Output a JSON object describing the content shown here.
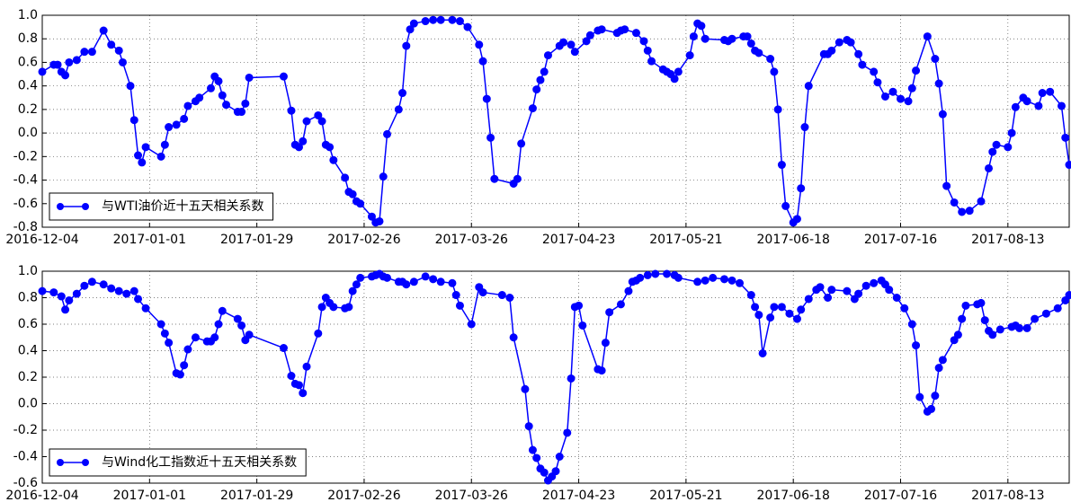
{
  "chart_data": [
    {
      "type": "line",
      "legend": "lower left",
      "grid": true,
      "xlim": [
        "2016-12-04",
        "2017-08-29"
      ],
      "xticks": [
        "2016-12-04",
        "2017-01-01",
        "2017-01-29",
        "2017-02-26",
        "2017-03-26",
        "2017-04-23",
        "2017-05-21",
        "2017-06-18",
        "2017-07-16",
        "2017-08-13"
      ],
      "ylim": [
        -0.8,
        1.0
      ],
      "yticks": [
        -0.8,
        -0.6,
        -0.4,
        -0.2,
        {
          "value": 0.0,
          "label": "0.0"
        },
        0.2,
        0.4,
        0.6,
        0.8,
        {
          "value": 1.0,
          "label": "1.0"
        }
      ],
      "x": [
        "2016-12-04",
        "2016-12-07",
        "2016-12-08",
        "2016-12-09",
        "2016-12-10",
        "2016-12-11",
        "2016-12-13",
        "2016-12-15",
        "2016-12-17",
        "2016-12-20",
        "2016-12-22",
        "2016-12-24",
        "2016-12-25",
        "2016-12-27",
        "2016-12-28",
        "2016-12-29",
        "2016-12-30",
        "2016-12-31",
        "2017-01-04",
        "2017-01-05",
        "2017-01-06",
        "2017-01-08",
        "2017-01-10",
        "2017-01-11",
        "2017-01-13",
        "2017-01-14",
        "2017-01-17",
        "2017-01-18",
        "2017-01-19",
        "2017-01-20",
        "2017-01-21",
        "2017-01-24",
        "2017-01-25",
        "2017-01-26",
        "2017-01-27",
        "2017-02-05",
        "2017-02-07",
        "2017-02-08",
        "2017-02-09",
        "2017-02-10",
        "2017-02-11",
        "2017-02-14",
        "2017-02-15",
        "2017-02-16",
        "2017-02-17",
        "2017-02-18",
        "2017-02-21",
        "2017-02-22",
        "2017-02-23",
        "2017-02-24",
        "2017-02-25",
        "2017-02-28",
        "2017-03-01",
        "2017-03-02",
        "2017-03-03",
        "2017-03-04",
        "2017-03-07",
        "2017-03-08",
        "2017-03-09",
        "2017-03-10",
        "2017-03-11",
        "2017-03-14",
        "2017-03-16",
        "2017-03-18",
        "2017-03-21",
        "2017-03-23",
        "2017-03-25",
        "2017-03-28",
        "2017-03-29",
        "2017-03-30",
        "2017-03-31",
        "2017-04-01",
        "2017-04-06",
        "2017-04-07",
        "2017-04-08",
        "2017-04-11",
        "2017-04-12",
        "2017-04-13",
        "2017-04-14",
        "2017-04-15",
        "2017-04-18",
        "2017-04-19",
        "2017-04-21",
        "2017-04-22",
        "2017-04-25",
        "2017-04-26",
        "2017-04-28",
        "2017-04-29",
        "2017-05-03",
        "2017-05-04",
        "2017-05-05",
        "2017-05-08",
        "2017-05-10",
        "2017-05-11",
        "2017-05-12",
        "2017-05-15",
        "2017-05-16",
        "2017-05-17",
        "2017-05-18",
        "2017-05-19",
        "2017-05-22",
        "2017-05-23",
        "2017-05-24",
        "2017-05-25",
        "2017-05-26",
        "2017-05-31",
        "2017-06-01",
        "2017-06-02",
        "2017-06-05",
        "2017-06-06",
        "2017-06-07",
        "2017-06-08",
        "2017-06-09",
        "2017-06-12",
        "2017-06-13",
        "2017-06-14",
        "2017-06-15",
        "2017-06-16",
        "2017-06-18",
        "2017-06-19",
        "2017-06-20",
        "2017-06-21",
        "2017-06-22",
        "2017-06-26",
        "2017-06-27",
        "2017-06-28",
        "2017-06-30",
        "2017-07-02",
        "2017-07-03",
        "2017-07-05",
        "2017-07-06",
        "2017-07-09",
        "2017-07-10",
        "2017-07-12",
        "2017-07-14",
        "2017-07-16",
        "2017-07-18",
        "2017-07-19",
        "2017-07-20",
        "2017-07-23",
        "2017-07-25",
        "2017-07-26",
        "2017-07-27",
        "2017-07-28",
        "2017-07-30",
        "2017-08-01",
        "2017-08-03",
        "2017-08-06",
        "2017-08-08",
        "2017-08-09",
        "2017-08-10",
        "2017-08-13",
        "2017-08-14",
        "2017-08-15",
        "2017-08-17",
        "2017-08-18",
        "2017-08-21",
        "2017-08-22",
        "2017-08-24",
        "2017-08-27",
        "2017-08-28",
        "2017-08-29"
      ],
      "series": [
        {
          "name": "与WTI油价近十五天相关系数",
          "color": "#0000ff",
          "values": [
            0.52,
            0.58,
            0.58,
            0.52,
            0.49,
            0.6,
            0.62,
            0.69,
            0.69,
            0.87,
            0.75,
            0.7,
            0.6,
            0.4,
            0.11,
            -0.19,
            -0.25,
            -0.12,
            -0.2,
            -0.1,
            0.05,
            0.07,
            0.12,
            0.23,
            0.27,
            0.3,
            0.38,
            0.48,
            0.44,
            0.32,
            0.24,
            0.18,
            0.18,
            0.25,
            0.47,
            0.48,
            0.19,
            -0.1,
            -0.12,
            -0.07,
            0.1,
            0.15,
            0.1,
            -0.1,
            -0.12,
            -0.23,
            -0.38,
            -0.5,
            -0.52,
            -0.58,
            -0.6,
            -0.71,
            -0.76,
            -0.75,
            -0.37,
            -0.01,
            0.2,
            0.34,
            0.74,
            0.88,
            0.93,
            0.95,
            0.96,
            0.96,
            0.96,
            0.95,
            0.9,
            0.75,
            0.61,
            0.29,
            -0.04,
            -0.39,
            -0.43,
            -0.39,
            -0.09,
            0.21,
            0.37,
            0.45,
            0.52,
            0.66,
            0.74,
            0.77,
            0.75,
            0.69,
            0.78,
            0.83,
            0.87,
            0.88,
            0.85,
            0.87,
            0.88,
            0.85,
            0.78,
            0.7,
            0.61,
            0.54,
            0.52,
            0.5,
            0.46,
            0.52,
            0.66,
            0.82,
            0.93,
            0.91,
            0.8,
            0.79,
            0.78,
            0.8,
            0.82,
            0.82,
            0.76,
            0.7,
            0.68,
            0.63,
            0.52,
            0.2,
            -0.27,
            -0.62,
            -0.76,
            -0.73,
            -0.47,
            0.05,
            0.4,
            0.67,
            0.67,
            0.7,
            0.77,
            0.79,
            0.77,
            0.67,
            0.58,
            0.52,
            0.43,
            0.31,
            0.35,
            0.29,
            0.27,
            0.38,
            0.53,
            0.82,
            0.63,
            0.42,
            0.16,
            -0.45,
            -0.59,
            -0.67,
            -0.66,
            -0.58,
            -0.3,
            -0.16,
            -0.1,
            -0.12,
            0.0,
            0.22,
            0.3,
            0.27,
            0.23,
            0.34,
            0.35,
            0.23,
            -0.04,
            -0.27
          ]
        }
      ]
    },
    {
      "type": "line",
      "legend": "lower left",
      "grid": true,
      "xlim": [
        "2016-12-04",
        "2017-08-29"
      ],
      "xticks": [
        "2016-12-04",
        "2017-01-01",
        "2017-01-29",
        "2017-02-26",
        "2017-03-26",
        "2017-04-23",
        "2017-05-21",
        "2017-06-18",
        "2017-07-16",
        "2017-08-13"
      ],
      "ylim": [
        -0.6,
        1.0
      ],
      "yticks": [
        -0.6,
        -0.4,
        -0.2,
        {
          "value": 0.0,
          "label": "0.0"
        },
        0.2,
        0.4,
        0.6,
        0.8,
        {
          "value": 1.0,
          "label": "1.0"
        }
      ],
      "x": [
        "2016-12-04",
        "2016-12-07",
        "2016-12-09",
        "2016-12-10",
        "2016-12-11",
        "2016-12-13",
        "2016-12-15",
        "2016-12-17",
        "2016-12-20",
        "2016-12-22",
        "2016-12-24",
        "2016-12-26",
        "2016-12-28",
        "2016-12-29",
        "2016-12-31",
        "2017-01-04",
        "2017-01-05",
        "2017-01-06",
        "2017-01-08",
        "2017-01-09",
        "2017-01-10",
        "2017-01-11",
        "2017-01-13",
        "2017-01-16",
        "2017-01-17",
        "2017-01-18",
        "2017-01-19",
        "2017-01-20",
        "2017-01-24",
        "2017-01-25",
        "2017-01-26",
        "2017-01-27",
        "2017-02-05",
        "2017-02-07",
        "2017-02-08",
        "2017-02-09",
        "2017-02-10",
        "2017-02-11",
        "2017-02-14",
        "2017-02-15",
        "2017-02-16",
        "2017-02-17",
        "2017-02-18",
        "2017-02-21",
        "2017-02-22",
        "2017-02-23",
        "2017-02-24",
        "2017-02-25",
        "2017-02-28",
        "2017-03-01",
        "2017-03-02",
        "2017-03-03",
        "2017-03-04",
        "2017-03-07",
        "2017-03-08",
        "2017-03-09",
        "2017-03-11",
        "2017-03-14",
        "2017-03-16",
        "2017-03-18",
        "2017-03-21",
        "2017-03-22",
        "2017-03-23",
        "2017-03-26",
        "2017-03-28",
        "2017-03-29",
        "2017-04-03",
        "2017-04-05",
        "2017-04-06",
        "2017-04-09",
        "2017-04-10",
        "2017-04-11",
        "2017-04-12",
        "2017-04-13",
        "2017-04-14",
        "2017-04-15",
        "2017-04-16",
        "2017-04-17",
        "2017-04-18",
        "2017-04-20",
        "2017-04-21",
        "2017-04-22",
        "2017-04-23",
        "2017-04-24",
        "2017-04-28",
        "2017-04-29",
        "2017-04-30",
        "2017-05-01",
        "2017-05-04",
        "2017-05-06",
        "2017-05-07",
        "2017-05-08",
        "2017-05-09",
        "2017-05-11",
        "2017-05-13",
        "2017-05-16",
        "2017-05-18",
        "2017-05-19",
        "2017-05-24",
        "2017-05-26",
        "2017-05-28",
        "2017-05-31",
        "2017-06-02",
        "2017-06-04",
        "2017-06-07",
        "2017-06-08",
        "2017-06-09",
        "2017-06-10",
        "2017-06-12",
        "2017-06-13",
        "2017-06-15",
        "2017-06-17",
        "2017-06-19",
        "2017-06-20",
        "2017-06-22",
        "2017-06-24",
        "2017-06-25",
        "2017-06-27",
        "2017-06-28",
        "2017-07-02",
        "2017-07-04",
        "2017-07-05",
        "2017-07-07",
        "2017-07-09",
        "2017-07-11",
        "2017-07-12",
        "2017-07-13",
        "2017-07-15",
        "2017-07-17",
        "2017-07-19",
        "2017-07-20",
        "2017-07-21",
        "2017-07-23",
        "2017-07-24",
        "2017-07-25",
        "2017-07-26",
        "2017-07-27",
        "2017-07-30",
        "2017-07-31",
        "2017-08-01",
        "2017-08-02",
        "2017-08-05",
        "2017-08-06",
        "2017-08-07",
        "2017-08-08",
        "2017-08-09",
        "2017-08-11",
        "2017-08-14",
        "2017-08-15",
        "2017-08-16",
        "2017-08-18",
        "2017-08-20",
        "2017-08-23",
        "2017-08-26",
        "2017-08-28",
        "2017-08-29"
      ],
      "series": [
        {
          "name": "与Wind化工指数近十五天相关系数",
          "color": "#0000ff",
          "values": [
            0.85,
            0.84,
            0.81,
            0.71,
            0.78,
            0.83,
            0.89,
            0.92,
            0.9,
            0.87,
            0.85,
            0.83,
            0.85,
            0.79,
            0.72,
            0.6,
            0.53,
            0.46,
            0.23,
            0.22,
            0.29,
            0.41,
            0.5,
            0.47,
            0.47,
            0.5,
            0.6,
            0.7,
            0.64,
            0.59,
            0.48,
            0.52,
            0.42,
            0.21,
            0.15,
            0.14,
            0.08,
            0.28,
            0.53,
            0.73,
            0.8,
            0.76,
            0.73,
            0.72,
            0.73,
            0.85,
            0.9,
            0.95,
            0.96,
            0.97,
            0.98,
            0.96,
            0.95,
            0.92,
            0.92,
            0.9,
            0.92,
            0.96,
            0.94,
            0.92,
            0.91,
            0.82,
            0.74,
            0.6,
            0.88,
            0.84,
            0.82,
            0.8,
            0.5,
            0.11,
            -0.17,
            -0.35,
            -0.41,
            -0.49,
            -0.52,
            -0.58,
            -0.55,
            -0.51,
            -0.4,
            -0.22,
            0.19,
            0.73,
            0.74,
            0.59,
            0.26,
            0.25,
            0.46,
            0.69,
            0.75,
            0.85,
            0.92,
            0.93,
            0.95,
            0.97,
            0.98,
            0.98,
            0.97,
            0.95,
            0.92,
            0.93,
            0.95,
            0.94,
            0.93,
            0.91,
            0.82,
            0.73,
            0.67,
            0.38,
            0.65,
            0.73,
            0.73,
            0.68,
            0.64,
            0.71,
            0.79,
            0.86,
            0.88,
            0.8,
            0.86,
            0.85,
            0.79,
            0.83,
            0.89,
            0.91,
            0.93,
            0.9,
            0.86,
            0.8,
            0.72,
            0.6,
            0.44,
            0.05,
            -0.06,
            -0.04,
            0.06,
            0.27,
            0.33,
            0.48,
            0.52,
            0.64,
            0.74,
            0.75,
            0.76,
            0.63,
            0.55,
            0.52,
            0.56,
            0.58,
            0.59,
            0.57,
            0.57,
            0.64,
            0.68,
            0.72,
            0.78,
            0.82
          ]
        }
      ]
    }
  ]
}
